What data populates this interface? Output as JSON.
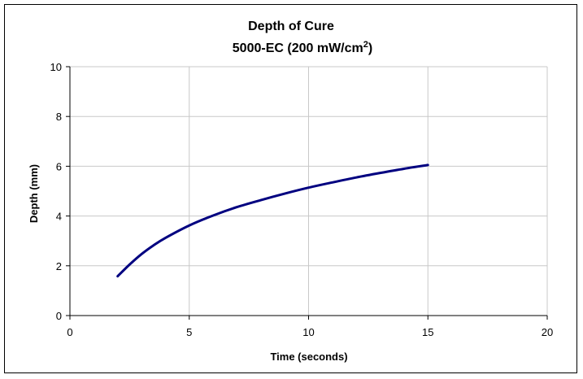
{
  "chart_data": {
    "type": "line",
    "title": "Depth of Cure",
    "subtitle": "5000-EC (200 mW/cm",
    "subtitle_sup": "2",
    "subtitle_end": ")",
    "xlabel": "Time (seconds)",
    "ylabel": "Depth (mm)",
    "xlim": [
      0,
      20
    ],
    "ylim": [
      0,
      10
    ],
    "x_ticks": [
      0,
      5,
      10,
      15,
      20
    ],
    "y_ticks": [
      0,
      2,
      4,
      6,
      8,
      10
    ],
    "grid": true,
    "legend": "none",
    "series": [
      {
        "color": "#000080",
        "x": [
          2,
          2.5,
          3,
          3.5,
          4,
          5,
          6,
          7,
          8,
          9,
          10,
          11,
          12,
          13,
          14,
          15
        ],
        "y": [
          1.58,
          2.05,
          2.47,
          2.82,
          3.12,
          3.62,
          4.02,
          4.36,
          4.64,
          4.9,
          5.14,
          5.35,
          5.55,
          5.73,
          5.9,
          6.05
        ]
      }
    ]
  }
}
